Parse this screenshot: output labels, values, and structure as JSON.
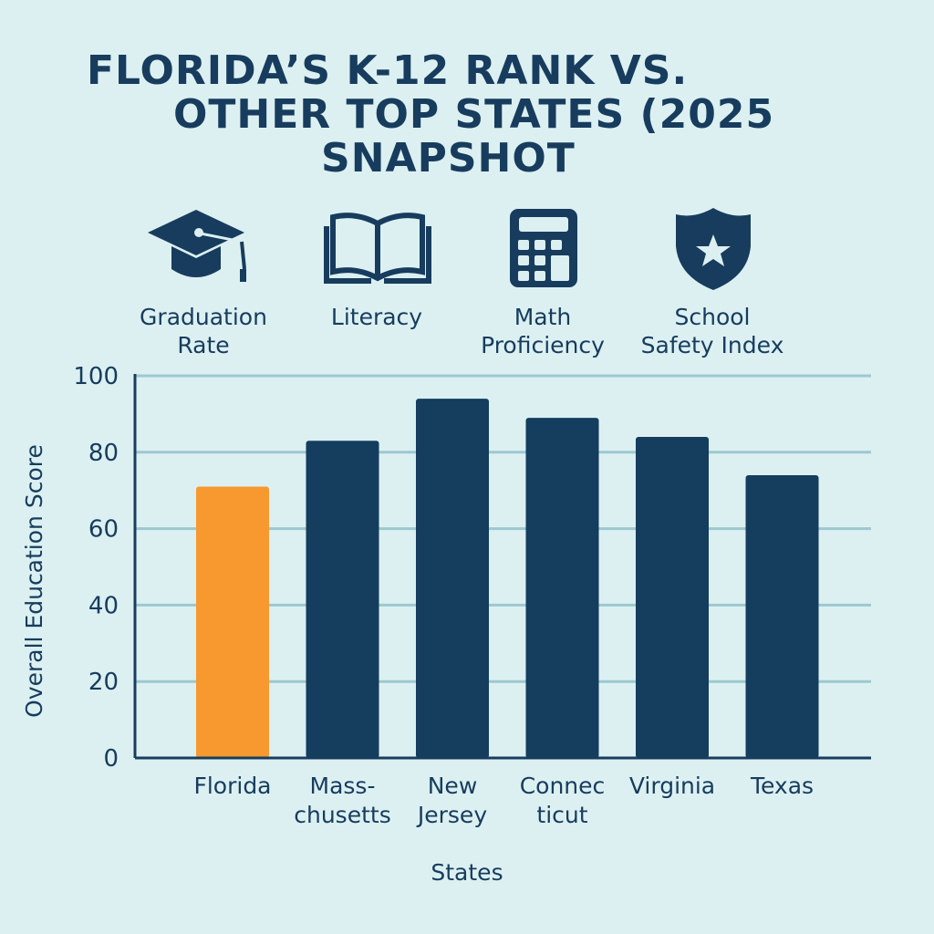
{
  "title": {
    "line1": "FLORIDA’S K-12 RANK VS.",
    "line2": "OTHER TOP STATES (2025",
    "line3": "SNAPSHOT"
  },
  "metrics": [
    {
      "icon": "graduation-cap-icon",
      "line1": "Graduation",
      "line2": "Rate"
    },
    {
      "icon": "open-book-icon",
      "line1": "Literacy",
      "line2": ""
    },
    {
      "icon": "calculator-icon",
      "line1": "Math",
      "line2": "Proficiency"
    },
    {
      "icon": "shield-star-icon",
      "line1": "School",
      "line2": "Safety Index"
    }
  ],
  "colors": {
    "highlight": "#f7992f",
    "bar": "#143d5e",
    "grid": "#9cc8d0",
    "text": "#173c5d",
    "background": "#dcf0f2"
  },
  "chart_data": {
    "type": "bar",
    "categories": [
      "Florida",
      "Massachusetts",
      "New Jersey",
      "Connecticut",
      "Virginia",
      "Texas"
    ],
    "category_labels": [
      [
        "Florida"
      ],
      [
        "Mass-",
        "chusetts"
      ],
      [
        "New",
        "Jersey"
      ],
      [
        "Connec",
        "ticut"
      ],
      [
        "Virginia"
      ],
      [
        "Texas"
      ]
    ],
    "values": [
      71,
      83,
      94,
      89,
      84,
      74
    ],
    "highlight": "Florida",
    "xlabel": "States",
    "ylabel": "Overall Education Score",
    "ylim": [
      0,
      100
    ],
    "yticks": [
      "0",
      "20",
      "40",
      "60",
      "80",
      "100"
    ],
    "grid": true
  }
}
